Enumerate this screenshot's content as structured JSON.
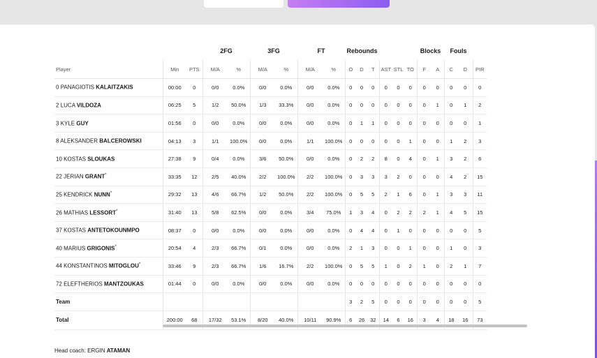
{
  "groups": [
    "2FG",
    "3FG",
    "FT",
    "Rebounds",
    "Blocks",
    "Fouls"
  ],
  "columns": [
    "Player",
    "Min",
    "PTS",
    "M/A",
    "%",
    "M/A",
    "%",
    "M/A",
    "%",
    "O",
    "D",
    "T",
    "AST",
    "STL",
    "TO",
    "F",
    "A",
    "C",
    "D",
    "PIR"
  ],
  "rows": [
    {
      "num": "0",
      "first": "PANAGIOTIS",
      "last": "KALAITZAKIS",
      "star": "",
      "min": "00:00",
      "pts": "0",
      "fg2": "0/0",
      "fg2p": "0.0%",
      "fg3": "0/0",
      "fg3p": "0.0%",
      "ft": "0/0",
      "ftp": "0.0%",
      "o": "0",
      "d": "0",
      "t": "0",
      "ast": "0",
      "stl": "0",
      "to": "0",
      "bf": "0",
      "ba": "0",
      "fc": "0",
      "fd": "0",
      "pir": "0"
    },
    {
      "num": "2",
      "first": "LUCA",
      "last": "VILDOZA",
      "star": "",
      "min": "06:25",
      "pts": "5",
      "fg2": "1/2",
      "fg2p": "50.0%",
      "fg3": "1/3",
      "fg3p": "33.3%",
      "ft": "0/0",
      "ftp": "0.0%",
      "o": "0",
      "d": "0",
      "t": "0",
      "ast": "0",
      "stl": "0",
      "to": "0",
      "bf": "0",
      "ba": "1",
      "fc": "0",
      "fd": "1",
      "pir": "2"
    },
    {
      "num": "3",
      "first": "KYLE",
      "last": "GUY",
      "star": "",
      "min": "01:56",
      "pts": "0",
      "fg2": "0/0",
      "fg2p": "0.0%",
      "fg3": "0/0",
      "fg3p": "0.0%",
      "ft": "0/0",
      "ftp": "0.0%",
      "o": "0",
      "d": "1",
      "t": "1",
      "ast": "0",
      "stl": "0",
      "to": "0",
      "bf": "0",
      "ba": "0",
      "fc": "0",
      "fd": "0",
      "pir": "1"
    },
    {
      "num": "8",
      "first": "ALEKSANDER",
      "last": "BALCEROWSKI",
      "star": "",
      "min": "04:13",
      "pts": "3",
      "fg2": "1/1",
      "fg2p": "100.0%",
      "fg3": "0/0",
      "fg3p": "0.0%",
      "ft": "1/1",
      "ftp": "100.0%",
      "o": "0",
      "d": "0",
      "t": "0",
      "ast": "0",
      "stl": "0",
      "to": "1",
      "bf": "0",
      "ba": "0",
      "fc": "1",
      "fd": "2",
      "pir": "3"
    },
    {
      "num": "10",
      "first": "KOSTAS",
      "last": "SLOUKAS",
      "star": "",
      "min": "27:38",
      "pts": "9",
      "fg2": "0/4",
      "fg2p": "0.0%",
      "fg3": "3/6",
      "fg3p": "50.0%",
      "ft": "0/0",
      "ftp": "0.0%",
      "o": "0",
      "d": "2",
      "t": "2",
      "ast": "8",
      "stl": "0",
      "to": "4",
      "bf": "0",
      "ba": "1",
      "fc": "3",
      "fd": "2",
      "pir": "6"
    },
    {
      "num": "22",
      "first": "JERIAN",
      "last": "GRANT",
      "star": "*",
      "min": "33:35",
      "pts": "12",
      "fg2": "2/5",
      "fg2p": "40.0%",
      "fg3": "2/2",
      "fg3p": "100.0%",
      "ft": "2/2",
      "ftp": "100.0%",
      "o": "0",
      "d": "3",
      "t": "3",
      "ast": "3",
      "stl": "2",
      "to": "0",
      "bf": "0",
      "ba": "0",
      "fc": "4",
      "fd": "2",
      "pir": "15"
    },
    {
      "num": "25",
      "first": "KENDRICK",
      "last": "NUNN",
      "star": "*",
      "min": "29:32",
      "pts": "13",
      "fg2": "4/6",
      "fg2p": "66.7%",
      "fg3": "1/2",
      "fg3p": "50.0%",
      "ft": "2/2",
      "ftp": "100.0%",
      "o": "0",
      "d": "5",
      "t": "5",
      "ast": "2",
      "stl": "1",
      "to": "6",
      "bf": "0",
      "ba": "1",
      "fc": "3",
      "fd": "3",
      "pir": "11"
    },
    {
      "num": "26",
      "first": "MATHIAS",
      "last": "LESSORT",
      "star": "*",
      "min": "31:40",
      "pts": "13",
      "fg2": "5/8",
      "fg2p": "62.5%",
      "fg3": "0/0",
      "fg3p": "0.0%",
      "ft": "3/4",
      "ftp": "75.0%",
      "o": "1",
      "d": "3",
      "t": "4",
      "ast": "0",
      "stl": "2",
      "to": "2",
      "bf": "2",
      "ba": "1",
      "fc": "4",
      "fd": "5",
      "pir": "15"
    },
    {
      "num": "37",
      "first": "KOSTAS",
      "last": "ANTETOKOUNMPO",
      "star": "",
      "min": "08:37",
      "pts": "0",
      "fg2": "0/0",
      "fg2p": "0.0%",
      "fg3": "0/0",
      "fg3p": "0.0%",
      "ft": "0/0",
      "ftp": "0.0%",
      "o": "0",
      "d": "4",
      "t": "4",
      "ast": "0",
      "stl": "1",
      "to": "0",
      "bf": "0",
      "ba": "0",
      "fc": "0",
      "fd": "0",
      "pir": "5"
    },
    {
      "num": "40",
      "first": "MARIUS",
      "last": "GRIGONIS",
      "star": "*",
      "min": "20:54",
      "pts": "4",
      "fg2": "2/3",
      "fg2p": "66.7%",
      "fg3": "0/1",
      "fg3p": "0.0%",
      "ft": "0/0",
      "ftp": "0.0%",
      "o": "2",
      "d": "1",
      "t": "3",
      "ast": "0",
      "stl": "0",
      "to": "1",
      "bf": "0",
      "ba": "0",
      "fc": "1",
      "fd": "0",
      "pir": "3"
    },
    {
      "num": "44",
      "first": "KONSTANTINOS",
      "last": "MITOGLOU",
      "star": "*",
      "min": "33:46",
      "pts": "9",
      "fg2": "2/3",
      "fg2p": "66.7%",
      "fg3": "1/6",
      "fg3p": "16.7%",
      "ft": "2/2",
      "ftp": "100.0%",
      "o": "0",
      "d": "5",
      "t": "5",
      "ast": "1",
      "stl": "0",
      "to": "2",
      "bf": "1",
      "ba": "0",
      "fc": "2",
      "fd": "1",
      "pir": "7"
    },
    {
      "num": "72",
      "first": "ELEFTHERIOS",
      "last": "MANTZOUKAS",
      "star": "",
      "min": "01:44",
      "pts": "0",
      "fg2": "0/0",
      "fg2p": "0.0%",
      "fg3": "0/0",
      "fg3p": "0.0%",
      "ft": "0/0",
      "ftp": "0.0%",
      "o": "0",
      "d": "0",
      "t": "0",
      "ast": "0",
      "stl": "0",
      "to": "0",
      "bf": "0",
      "ba": "0",
      "fc": "0",
      "fd": "0",
      "pir": "0"
    }
  ],
  "team": {
    "label": "Team",
    "o": "3",
    "d": "2",
    "t": "5",
    "ast": "0",
    "stl": "0",
    "to": "0",
    "bf": "0",
    "ba": "0",
    "fc": "0",
    "fd": "0",
    "pir": "5"
  },
  "total": {
    "label": "Total",
    "min": "200:00",
    "pts": "68",
    "fg2": "17/32",
    "fg2p": "53.1%",
    "fg3": "8/20",
    "fg3p": "40.0%",
    "ft": "10/11",
    "ftp": "90.9%",
    "o": "6",
    "d": "26",
    "t": "32",
    "ast": "14",
    "stl": "6",
    "to": "16",
    "bf": "3",
    "ba": "4",
    "fc": "18",
    "fd": "16",
    "pir": "73"
  },
  "coach": {
    "label": "Head coach:",
    "first": "ERGIN",
    "last": "ATAMAN"
  }
}
